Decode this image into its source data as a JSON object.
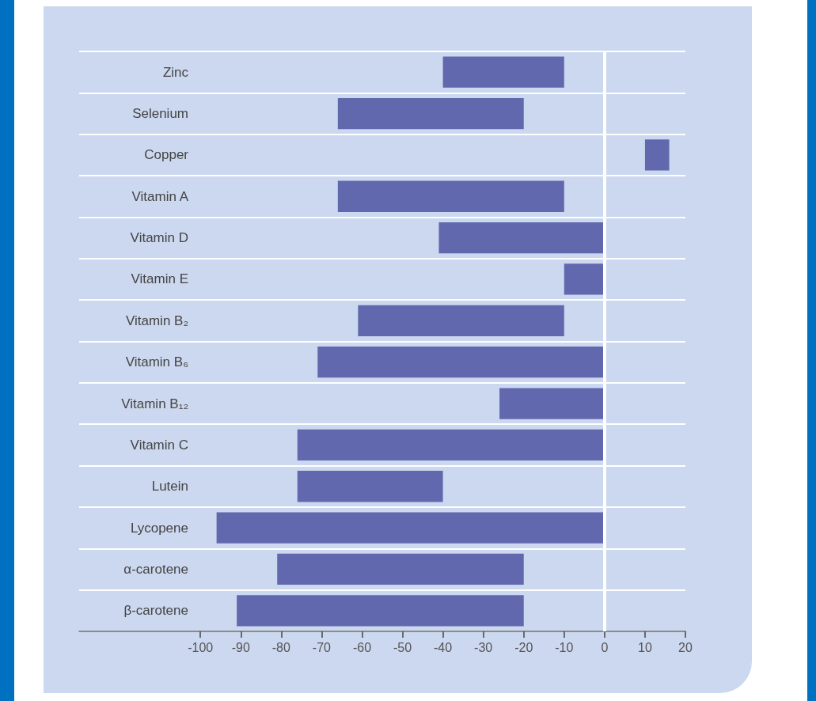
{
  "chart_data": {
    "type": "bar",
    "orientation": "horizontal",
    "categories": [
      "Zinc",
      "Selenium",
      "Copper",
      "Vitamin A",
      "Vitamin D",
      "Vitamin E",
      "Vitamin B₂",
      "Vitamin B₆",
      "Vitamin B₁₂",
      "Vitamin C",
      "Lutein",
      "Lycopene",
      "α-carotene",
      "β-carotene"
    ],
    "base": [
      -40,
      -66,
      10,
      -66,
      -41,
      -10,
      -61,
      -71,
      -26,
      -76,
      -76,
      -96,
      -81,
      -91
    ],
    "values": [
      30,
      46,
      6,
      56,
      41,
      10,
      51,
      71,
      26,
      76,
      36,
      96,
      61,
      71
    ],
    "color": "#6268ad",
    "xlim": [
      -130,
      20
    ],
    "xticks": [
      -100,
      -90,
      -80,
      -70,
      -60,
      -50,
      -40,
      -30,
      -20,
      -10,
      0,
      10,
      20
    ],
    "grid": "y",
    "ref_lines": [
      {
        "axis": "x",
        "value": 0,
        "color": "#ffffff"
      }
    ]
  }
}
